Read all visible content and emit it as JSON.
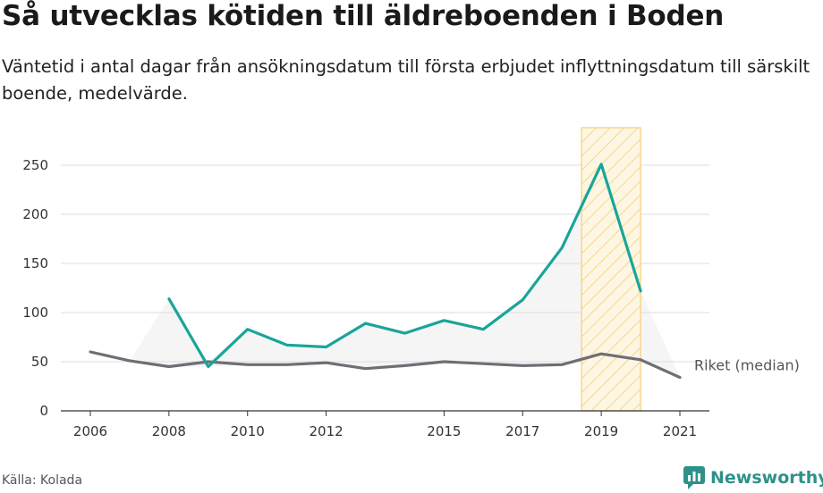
{
  "title": "Så utvecklas kötiden till äldreboenden i Boden",
  "subtitle": "Väntetid i antal dagar från ansökningsdatum till första erbjudet inflyttningsdatum till särskilt boende, medelvärde.",
  "source": "Källa: Kolada",
  "brand": {
    "name": "Newsworthy",
    "icon": "newsworthy-logo-icon",
    "color": "#2e9189"
  },
  "colors": {
    "primary": "#19a59a",
    "secondary": "#6e6e76",
    "highlight": "#f6d78b",
    "band": "#f5f5f5",
    "grid": "#dddddd"
  },
  "chart_data": {
    "type": "line",
    "title": "Så utvecklas kötiden till äldreboenden i Boden",
    "ylim": [
      0,
      290
    ],
    "yticks": [
      0,
      50,
      100,
      150,
      200,
      250
    ],
    "xlim": [
      2006,
      2021
    ],
    "xticks": [
      2006,
      2008,
      2010,
      2012,
      2015,
      2017,
      2019,
      2021
    ],
    "x": [
      2006,
      2007,
      2008,
      2009,
      2010,
      2011,
      2012,
      2013,
      2014,
      2015,
      2016,
      2017,
      2018,
      2019,
      2020,
      2021
    ],
    "series": [
      {
        "values": [
          null,
          null,
          114,
          45,
          83,
          67,
          65,
          89,
          79,
          92,
          83,
          113,
          166,
          251,
          122,
          null
        ]
      },
      {
        "name": "Riket (median)",
        "values": [
          60,
          51,
          45,
          50,
          47,
          47,
          49,
          43,
          46,
          50,
          48,
          46,
          47,
          58,
          52,
          34
        ]
      }
    ],
    "highlight_range": [
      2019
    ],
    "grid": true
  }
}
